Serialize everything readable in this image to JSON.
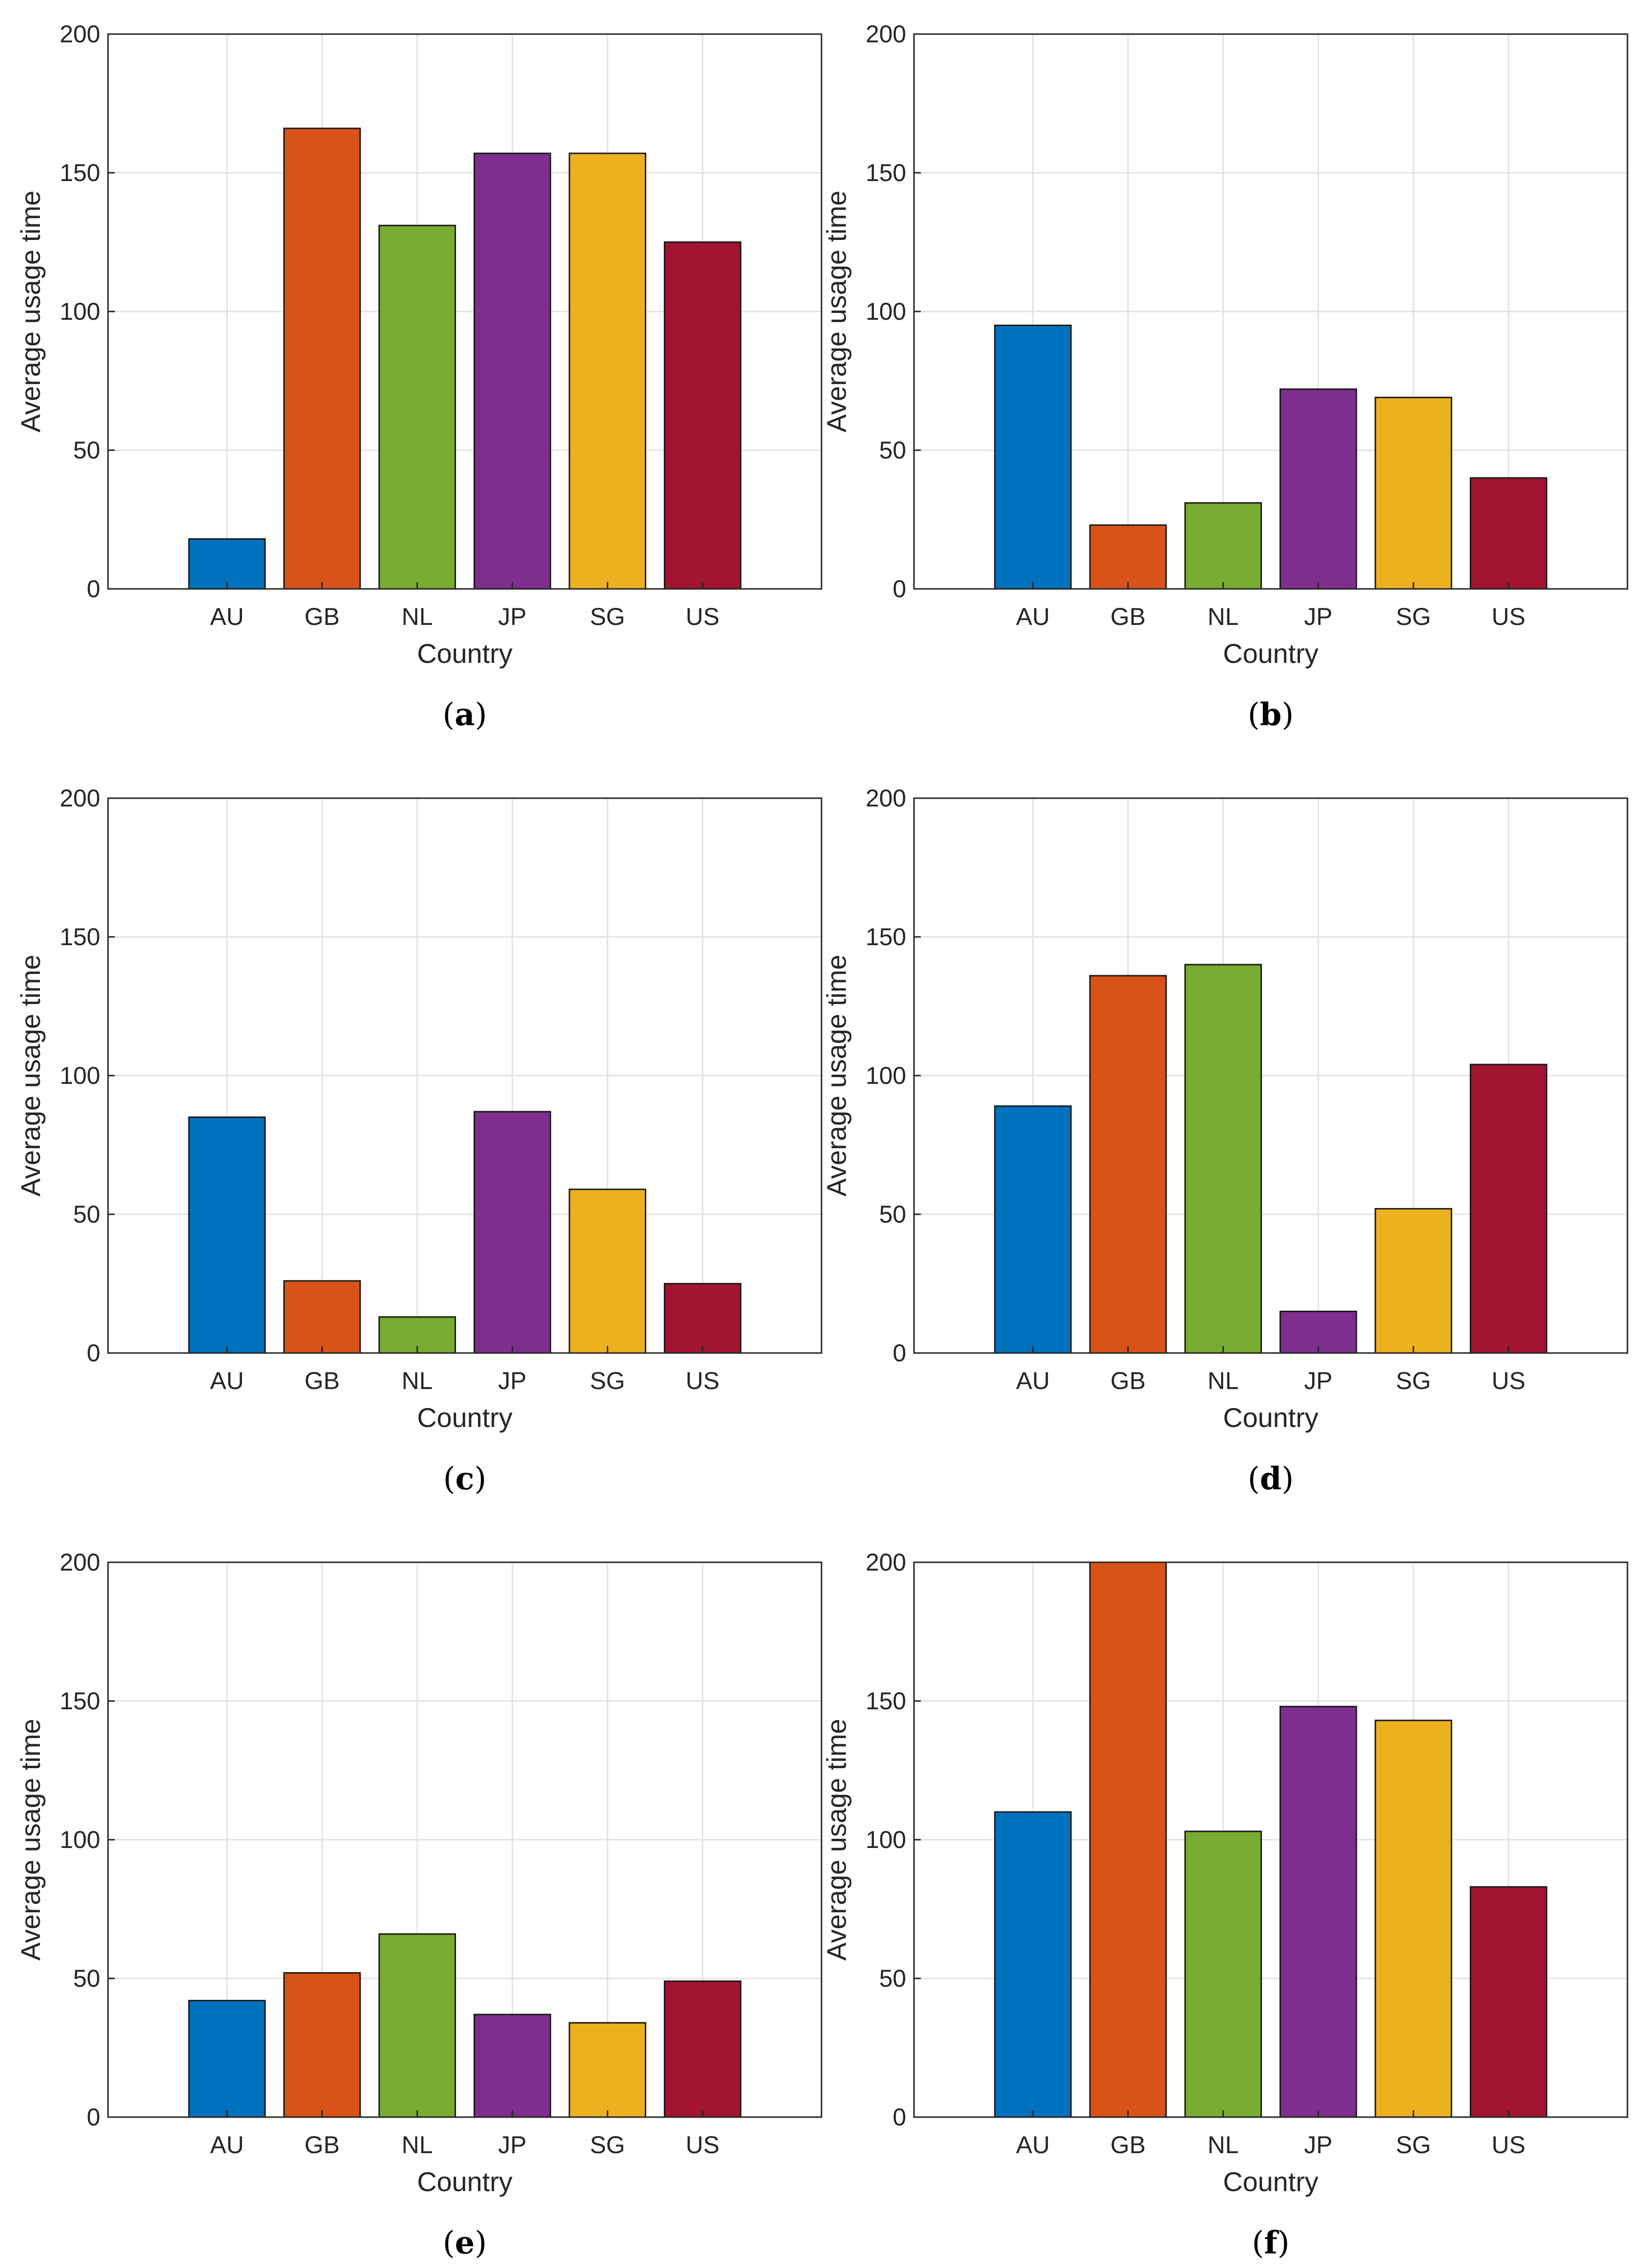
{
  "panels": [
    {
      "caption_open": "(",
      "caption_letter": "a",
      "caption_close": ")"
    },
    {
      "caption_open": "(",
      "caption_letter": "b",
      "caption_close": ")"
    },
    {
      "caption_open": "(",
      "caption_letter": "c",
      "caption_close": ")"
    },
    {
      "caption_open": "(",
      "caption_letter": "d",
      "caption_close": ")"
    },
    {
      "caption_open": "(",
      "caption_letter": "e",
      "caption_close": ")"
    },
    {
      "caption_open": "(",
      "caption_letter": "f",
      "caption_close": ")"
    }
  ],
  "chart_data": [
    {
      "type": "bar",
      "title": "",
      "xlabel": "Country",
      "ylabel": "Average usage time",
      "categories": [
        "AU",
        "GB",
        "NL",
        "JP",
        "SG",
        "US"
      ],
      "values": [
        18,
        166,
        131,
        157,
        157,
        125
      ],
      "ylim": [
        0,
        200
      ],
      "yticks": [
        0,
        50,
        100,
        150,
        200
      ],
      "grid": true,
      "colors": [
        "#0072BD",
        "#D95319",
        "#77AC30",
        "#7E2F8E",
        "#EDB120",
        "#A2142F"
      ]
    },
    {
      "type": "bar",
      "title": "",
      "xlabel": "Country",
      "ylabel": "Average usage time",
      "categories": [
        "AU",
        "GB",
        "NL",
        "JP",
        "SG",
        "US"
      ],
      "values": [
        95,
        23,
        31,
        72,
        69,
        40
      ],
      "ylim": [
        0,
        200
      ],
      "yticks": [
        0,
        50,
        100,
        150,
        200
      ],
      "grid": true,
      "colors": [
        "#0072BD",
        "#D95319",
        "#77AC30",
        "#7E2F8E",
        "#EDB120",
        "#A2142F"
      ]
    },
    {
      "type": "bar",
      "title": "",
      "xlabel": "Country",
      "ylabel": "Average usage time",
      "categories": [
        "AU",
        "GB",
        "NL",
        "JP",
        "SG",
        "US"
      ],
      "values": [
        85,
        26,
        13,
        87,
        59,
        25
      ],
      "ylim": [
        0,
        200
      ],
      "yticks": [
        0,
        50,
        100,
        150,
        200
      ],
      "grid": true,
      "colors": [
        "#0072BD",
        "#D95319",
        "#77AC30",
        "#7E2F8E",
        "#EDB120",
        "#A2142F"
      ]
    },
    {
      "type": "bar",
      "title": "",
      "xlabel": "Country",
      "ylabel": "Average usage time",
      "categories": [
        "AU",
        "GB",
        "NL",
        "JP",
        "SG",
        "US"
      ],
      "values": [
        89,
        136,
        140,
        15,
        52,
        104
      ],
      "ylim": [
        0,
        200
      ],
      "yticks": [
        0,
        50,
        100,
        150,
        200
      ],
      "grid": true,
      "colors": [
        "#0072BD",
        "#D95319",
        "#77AC30",
        "#7E2F8E",
        "#EDB120",
        "#A2142F"
      ]
    },
    {
      "type": "bar",
      "title": "",
      "xlabel": "Country",
      "ylabel": "Average usage time",
      "categories": [
        "AU",
        "GB",
        "NL",
        "JP",
        "SG",
        "US"
      ],
      "values": [
        42,
        52,
        66,
        37,
        34,
        49
      ],
      "ylim": [
        0,
        200
      ],
      "yticks": [
        0,
        50,
        100,
        150,
        200
      ],
      "grid": true,
      "colors": [
        "#0072BD",
        "#D95319",
        "#77AC30",
        "#7E2F8E",
        "#EDB120",
        "#A2142F"
      ]
    },
    {
      "type": "bar",
      "title": "",
      "xlabel": "Country",
      "ylabel": "Average usage time",
      "categories": [
        "AU",
        "GB",
        "NL",
        "JP",
        "SG",
        "US"
      ],
      "values": [
        110,
        200,
        103,
        148,
        143,
        83
      ],
      "ylim": [
        0,
        200
      ],
      "yticks": [
        0,
        50,
        100,
        150,
        200
      ],
      "grid": true,
      "colors": [
        "#0072BD",
        "#D95319",
        "#77AC30",
        "#7E2F8E",
        "#EDB120",
        "#A2142F"
      ]
    }
  ]
}
